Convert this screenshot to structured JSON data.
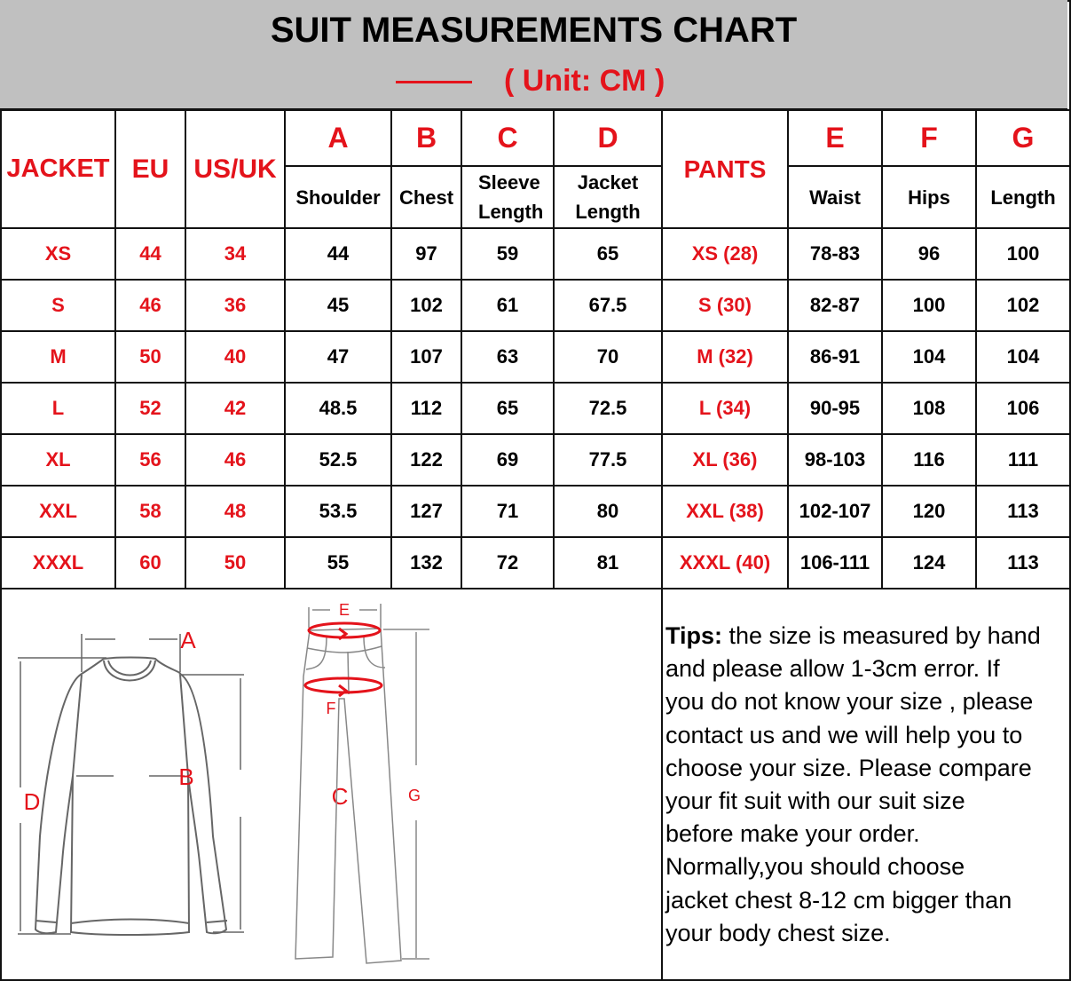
{
  "title": "SUIT MEASUREMENTS CHART",
  "unit": "( Unit: CM )",
  "colors": {
    "accent_red": "#e4131b",
    "header_gray": "#c0c0c0",
    "border": "#111111"
  },
  "headers": {
    "jacket": "JACKET",
    "eu": "EU",
    "usuk": "US/UK",
    "pants": "PANTS",
    "jacket_measures": [
      {
        "letter": "A",
        "label": "Shoulder"
      },
      {
        "letter": "B",
        "label": "Chest"
      },
      {
        "letter": "C",
        "label": "Sleeve Length"
      },
      {
        "letter": "D",
        "label": "Jacket Length"
      }
    ],
    "pants_measures": [
      {
        "letter": "E",
        "label": "Waist"
      },
      {
        "letter": "F",
        "label": "Hips"
      },
      {
        "letter": "G",
        "label": "Length"
      }
    ]
  },
  "rows": [
    {
      "jacket": "XS",
      "eu": "44",
      "usuk": "34",
      "shoulder": "44",
      "chest": "97",
      "sleeve": "59",
      "length": "65",
      "pants": "XS (28)",
      "waist": "78-83",
      "hips": "96",
      "plength": "100"
    },
    {
      "jacket": "S",
      "eu": "46",
      "usuk": "36",
      "shoulder": "45",
      "chest": "102",
      "sleeve": "61",
      "length": "67.5",
      "pants": "S (30)",
      "waist": "82-87",
      "hips": "100",
      "plength": "102"
    },
    {
      "jacket": "M",
      "eu": "50",
      "usuk": "40",
      "shoulder": "47",
      "chest": "107",
      "sleeve": "63",
      "length": "70",
      "pants": "M (32)",
      "waist": "86-91",
      "hips": "104",
      "plength": "104"
    },
    {
      "jacket": "L",
      "eu": "52",
      "usuk": "42",
      "shoulder": "48.5",
      "chest": "112",
      "sleeve": "65",
      "length": "72.5",
      "pants": "L (34)",
      "waist": "90-95",
      "hips": "108",
      "plength": "106"
    },
    {
      "jacket": "XL",
      "eu": "56",
      "usuk": "46",
      "shoulder": "52.5",
      "chest": "122",
      "sleeve": "69",
      "length": "77.5",
      "pants": "XL (36)",
      "waist": "98-103",
      "hips": "116",
      "plength": "111"
    },
    {
      "jacket": "XXL",
      "eu": "58",
      "usuk": "48",
      "shoulder": "53.5",
      "chest": "127",
      "sleeve": "71",
      "length": "80",
      "pants": "XXL (38)",
      "waist": "102-107",
      "hips": "120",
      "plength": "113"
    },
    {
      "jacket": "XXXL",
      "eu": "60",
      "usuk": "50",
      "shoulder": "55",
      "chest": "132",
      "sleeve": "72",
      "length": "81",
      "pants": "XXXL (40)",
      "waist": "106-111",
      "hips": "124",
      "plength": "113"
    }
  ],
  "diagram_labels": {
    "a": "A",
    "b": "B",
    "c": "C",
    "d": "D",
    "e": "E",
    "f": "F",
    "g": "G"
  },
  "tips": {
    "heading": "Tips:",
    "lines": [
      " the size is measured by hand",
      "and please allow 1-3cm error. If",
      "you do not know your size , please",
      "contact us and we will help you to",
      "choose your size. Please compare",
      "your fit suit with our suit size",
      "before make your order.",
      "Normally,you should choose",
      "jacket chest 8-12 cm bigger than",
      "your body chest size."
    ]
  }
}
